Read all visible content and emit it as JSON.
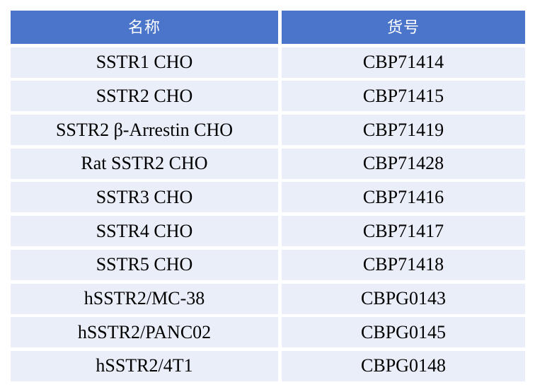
{
  "table": {
    "columns": [
      {
        "label": "名称"
      },
      {
        "label": "货号"
      }
    ],
    "rows": [
      {
        "name": "SSTR1 CHO",
        "sku": "CBP71414"
      },
      {
        "name": "SSTR2 CHO",
        "sku": "CBP71415"
      },
      {
        "name": "SSTR2 β-Arrestin CHO",
        "sku": "CBP71419"
      },
      {
        "name": "Rat SSTR2 CHO",
        "sku": "CBP71428"
      },
      {
        "name": "SSTR3 CHO",
        "sku": "CBP71416"
      },
      {
        "name": "SSTR4 CHO",
        "sku": "CBP71417"
      },
      {
        "name": "SSTR5 CHO",
        "sku": "CBP71418"
      },
      {
        "name": "hSSTR2/MC-38",
        "sku": "CBPG0143"
      },
      {
        "name": "hSSTR2/PANC02",
        "sku": "CBPG0145"
      },
      {
        "name": "hSSTR2/4T1",
        "sku": "CBPG0148"
      }
    ]
  },
  "colors": {
    "header_bg": "#4A75CB",
    "header_text": "#FFFFFF",
    "row_bg": "#EAEEF9",
    "cell_text": "#000000",
    "gap_color": "#FFFFFF"
  }
}
